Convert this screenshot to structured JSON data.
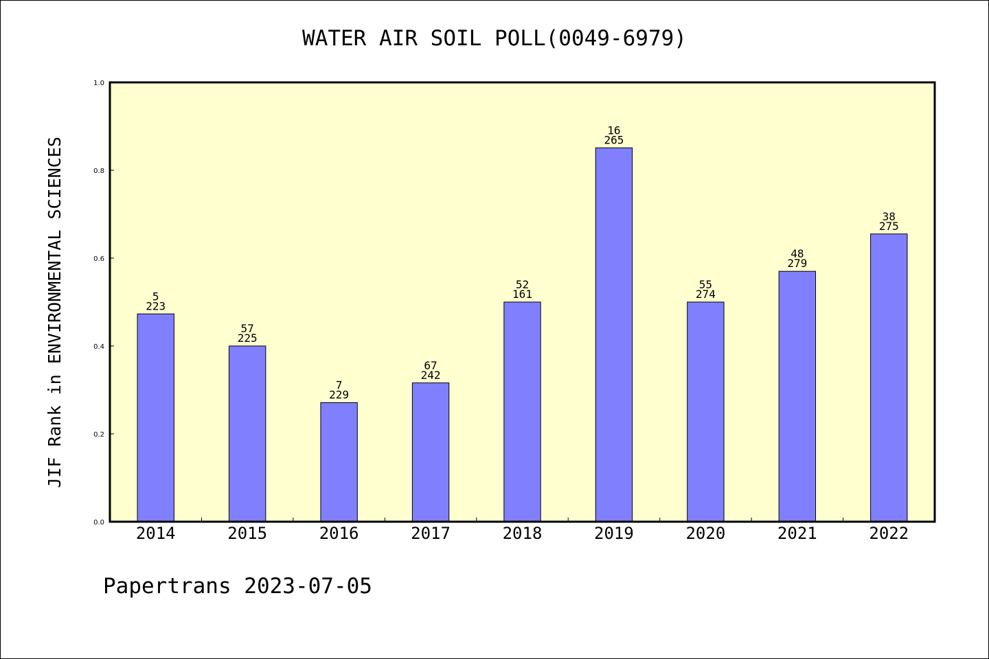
{
  "chart_data": {
    "type": "bar",
    "title": "WATER AIR SOIL POLL(0049-6979)",
    "ylabel": "JIF Rank in ENVIRONMENTAL SCIENCES",
    "xlabel": "",
    "ylim": [
      0,
      1.0
    ],
    "yticks": [
      "0.0",
      "0.2",
      "0.4",
      "0.6",
      "0.8",
      "1.0"
    ],
    "categories": [
      "2014",
      "2015",
      "2016",
      "2017",
      "2018",
      "2019",
      "2020",
      "2021",
      "2022"
    ],
    "values": [
      0.473,
      0.4,
      0.271,
      0.316,
      0.5,
      0.851,
      0.5,
      0.57,
      0.655
    ],
    "rank": [
      "5",
      "57",
      "7",
      "67",
      "52",
      "16",
      "55",
      "48",
      "38"
    ],
    "total": [
      "223",
      "225",
      "229",
      "242",
      "161",
      "265",
      "274",
      "279",
      "275"
    ],
    "grid": false,
    "colors": {
      "bar": "#8080ff",
      "plot_bg": "#ffffd0",
      "axis": "#000000"
    }
  },
  "footer": "Papertrans 2023-07-05"
}
